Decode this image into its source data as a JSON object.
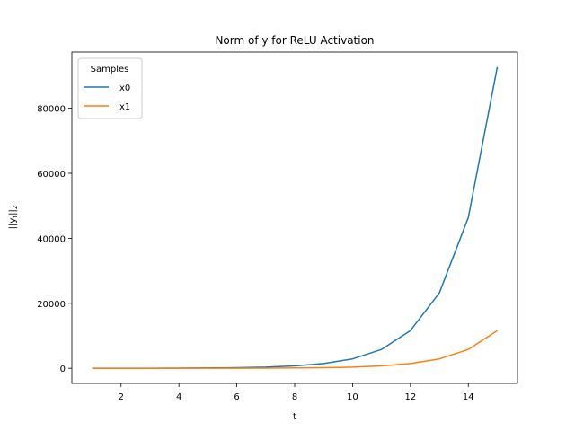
{
  "chart_data": {
    "type": "line",
    "title": "Norm of y for ReLU Activation",
    "xlabel": "t",
    "ylabel": "||y_t||_2",
    "ylabel_main": "||y",
    "ylabel_sub": "t",
    "ylabel_end": "||",
    "ylabel_end_sub": "2",
    "xlim": [
      0.3,
      15.7
    ],
    "ylim": [
      -4650,
      97300
    ],
    "xticks": [
      2,
      4,
      6,
      8,
      10,
      12,
      14
    ],
    "yticks": [
      0,
      20000,
      40000,
      60000,
      80000
    ],
    "grid": false,
    "legend": {
      "title": "Samples",
      "placement": "top-left"
    },
    "x": [
      1,
      2,
      3,
      4,
      5,
      6,
      7,
      8,
      9,
      10,
      11,
      12,
      13,
      14,
      15
    ],
    "series": [
      {
        "name": "x0",
        "color": "#1f77b4",
        "values": [
          6,
          11,
          23,
          45,
          90,
          181,
          362,
          724,
          1448,
          2896,
          5792,
          11584,
          23168,
          46336,
          92672
        ]
      },
      {
        "name": "x1",
        "color": "#ff7f0e",
        "values": [
          1,
          1,
          3,
          6,
          11,
          23,
          45,
          90,
          181,
          362,
          724,
          1448,
          2896,
          5792,
          11584
        ]
      }
    ]
  }
}
